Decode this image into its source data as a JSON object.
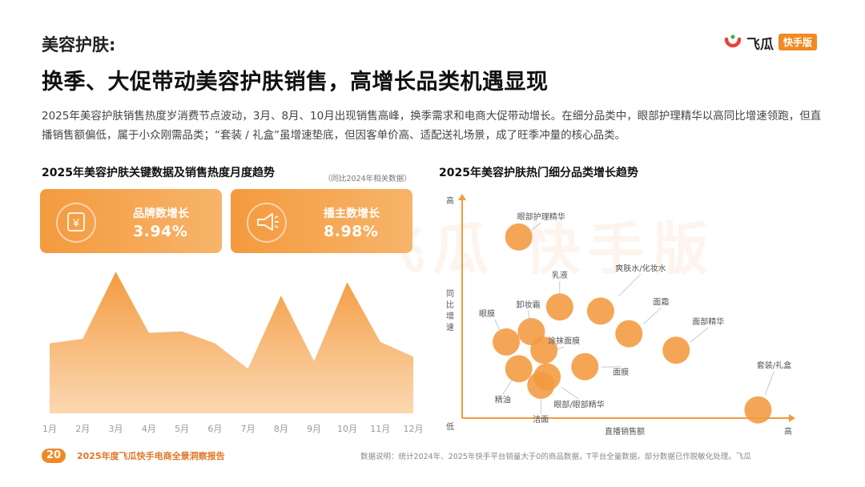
{
  "page": {
    "eyebrow": "美容护肤:",
    "headline": "换季、大促带动美容护肤销售，高增长品类机遇显现",
    "intro": "2025年美容护肤销售热度岁消费节点波动，3月、8月、10月出现销售高峰，换季需求和电商大促带动增长。在细分品类中，眼部护理精华以高同比增速领跑，但直播销售额偏低，属于小众刚需品类；“套装 / 礼盒”虽增速垫底，但因客单价高、适配送礼场景，成了旺季冲量的核心品类。",
    "watermark": "飞瓜 快手版"
  },
  "logo": {
    "name": "飞瓜",
    "badge": "快手版",
    "colors": {
      "ring_red": "#e8423b",
      "ring_green": "#4caf50",
      "badge": "#f08a24"
    }
  },
  "left_section": {
    "title": "2025年美容护肤关键数据及销售热度月度趋势",
    "note": "（同比2024年相关数据）"
  },
  "right_section": {
    "title": "2025年美容护肤热门细分品类增长趋势"
  },
  "cards": [
    {
      "label": "品牌数增长",
      "value": "3.94%",
      "icon": "yen-coin-icon"
    },
    {
      "label": "播主数增长",
      "value": "8.98%",
      "icon": "megaphone-icon"
    }
  ],
  "footer": {
    "page_number": "20",
    "report_title": "2025年度飞瓜快手电商全景洞察报告",
    "source": "数据说明：统计2024年、2025年快手平台销量大于0的商品数据，T平台全量数据，部分数据已作脱敏化处理。飞瓜"
  },
  "chart_data": [
    {
      "type": "area",
      "categories": [
        "1月",
        "2月",
        "3月",
        "4月",
        "5月",
        "6月",
        "7月",
        "8月",
        "9月",
        "10月",
        "11月",
        "12月"
      ],
      "values": [
        0.47,
        0.5,
        0.95,
        0.54,
        0.55,
        0.47,
        0.3,
        0.79,
        0.35,
        0.88,
        0.48,
        0.38
      ],
      "value_unit": "relative sales heat (unlabeled axis)",
      "ylim": [
        0,
        1
      ],
      "color": "#f39a3f",
      "grid": false
    },
    {
      "type": "scatter",
      "xlabel": "直播销售额",
      "ylabel": "同比增速",
      "axis_ends": {
        "y_high": "高",
        "origin": "低",
        "x_high": "高"
      },
      "xlim": [
        0,
        100
      ],
      "ylim": [
        0,
        100
      ],
      "color": "#f39a3f",
      "points": [
        {
          "name": "眼部护理精华",
          "x": 18,
          "y": 88
        },
        {
          "name": "乳液",
          "x": 31,
          "y": 54
        },
        {
          "name": "爽肤水/化妆水",
          "x": 44,
          "y": 52
        },
        {
          "name": "卸妆霜",
          "x": 22,
          "y": 42
        },
        {
          "name": "眼膜",
          "x": 14,
          "y": 37
        },
        {
          "name": "涂抹面膜",
          "x": 26,
          "y": 33
        },
        {
          "name": "面霜",
          "x": 53,
          "y": 41
        },
        {
          "name": "面部精华",
          "x": 68,
          "y": 33
        },
        {
          "name": "面膜",
          "x": 39,
          "y": 25
        },
        {
          "name": "精油",
          "x": 18,
          "y": 24
        },
        {
          "name": "眼部/眼部精华",
          "x": 27,
          "y": 20
        },
        {
          "name": "洁面",
          "x": 25,
          "y": 16
        },
        {
          "name": "套装/礼盒",
          "x": 94,
          "y": 4
        }
      ]
    }
  ]
}
